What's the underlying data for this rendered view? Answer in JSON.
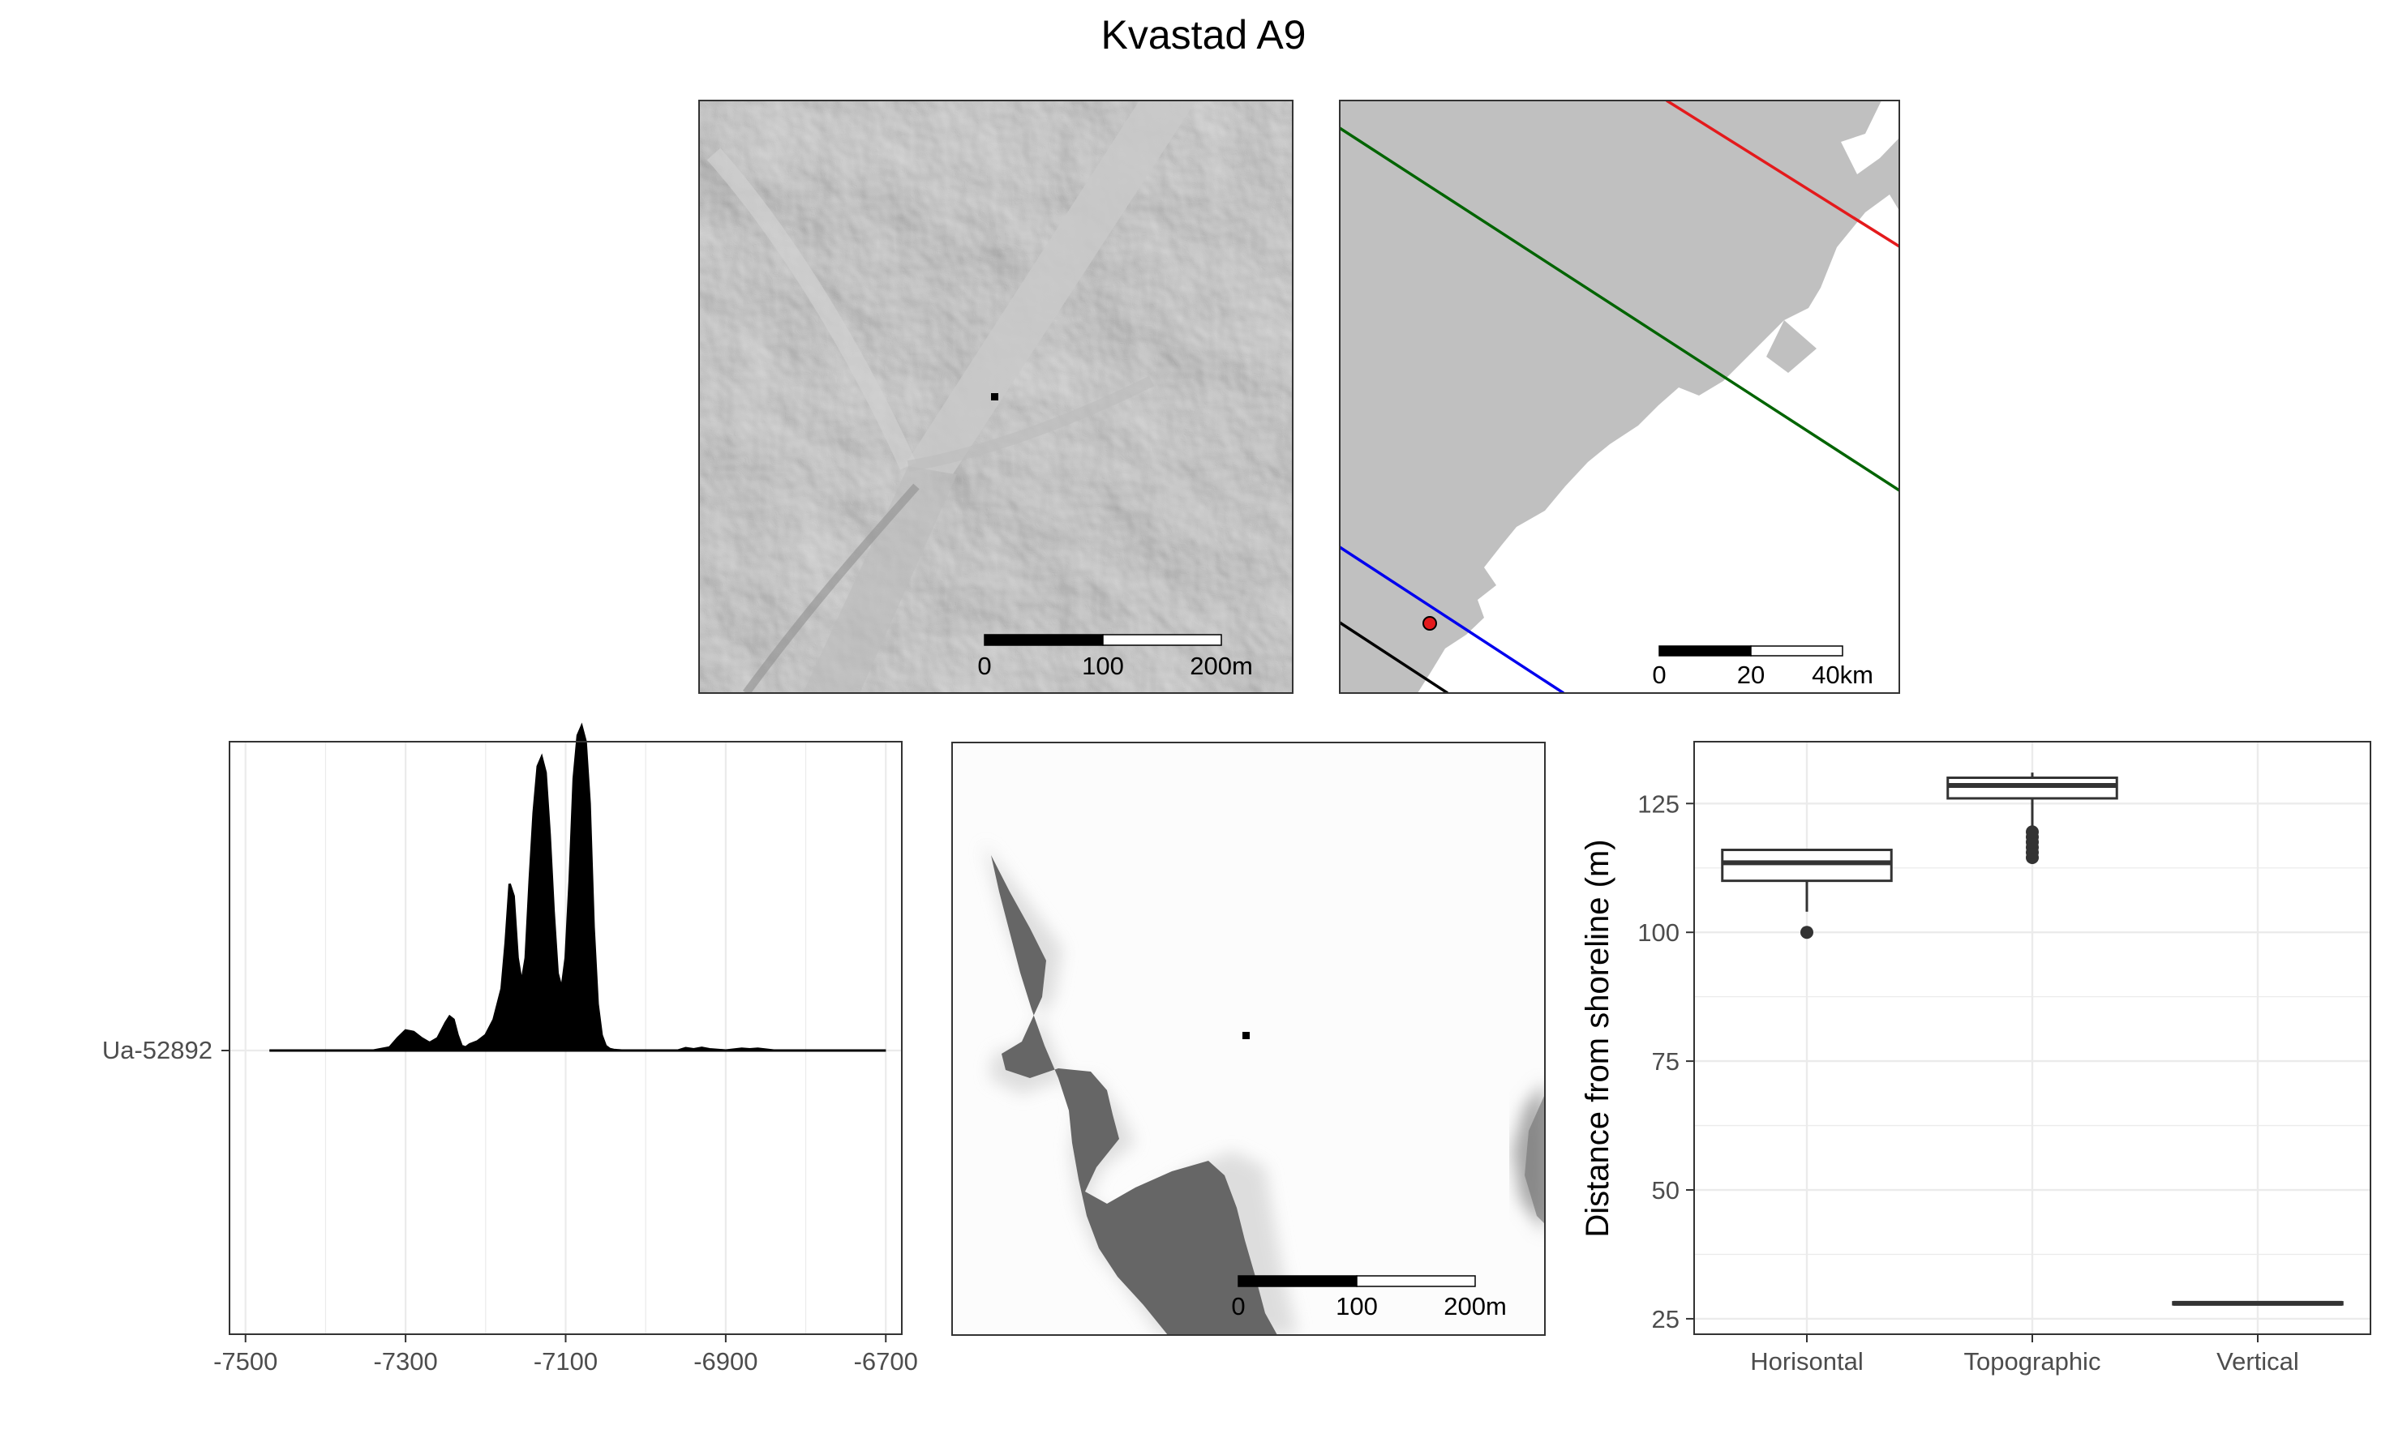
{
  "figure_title": "Kvastad A9",
  "colors": {
    "hillshade_base": "#a9a9a9",
    "land": "#c0c0c0",
    "isobase_red": "#e41a1c",
    "isobase_green": "#006400",
    "isobase_blue": "#0000ee",
    "isobase_black": "#000000",
    "site_point": "#e41a1c",
    "sea": "#666666",
    "grid": "#ebebeb",
    "box_line": "#333333"
  },
  "map_hillshade": {
    "scale_labels": [
      "0",
      "100",
      "200m"
    ]
  },
  "map_region": {
    "scale_labels": [
      "0",
      "20",
      "40km"
    ]
  },
  "map_sea": {
    "scale_labels": [
      "0",
      "100",
      "200m"
    ]
  },
  "chart_data": [
    {
      "type": "area",
      "title": "",
      "xlabel": "",
      "ylabel": "",
      "xlim": [
        -7520,
        -6680
      ],
      "x_ticks": [
        -7500,
        -7300,
        -7100,
        -6900,
        -6700
      ],
      "x_tick_labels": [
        "-7500",
        "-7300",
        "-7100",
        "-6900",
        "-6700"
      ],
      "y_tick_labels": [
        "Ua-52892"
      ],
      "grid": true,
      "series": [
        {
          "name": "Ua-52892",
          "x": [
            -7470,
            -7340,
            -7320,
            -7310,
            -7300,
            -7290,
            -7280,
            -7270,
            -7260,
            -7250,
            -7245,
            -7240,
            -7235,
            -7230,
            -7225,
            -7220,
            -7210,
            -7200,
            -7190,
            -7180,
            -7175,
            -7170,
            -7165,
            -7160,
            -7155,
            -7150,
            -7145,
            -7140,
            -7135,
            -7130,
            -7125,
            -7120,
            -7115,
            -7110,
            -7105,
            -7100,
            -7095,
            -7090,
            -7085,
            -7080,
            -7075,
            -7070,
            -7065,
            -7060,
            -7055,
            -7050,
            -7045,
            -7040,
            -7030,
            -7000,
            -6960,
            -6950,
            -6940,
            -6930,
            -6920,
            -6900,
            -6880,
            -6870,
            -6860,
            -6840,
            -6800,
            -6700
          ],
          "y": [
            0,
            0,
            0.01,
            0.04,
            0.065,
            0.06,
            0.04,
            0.025,
            0.04,
            0.09,
            0.11,
            0.1,
            0.05,
            0.015,
            0.01,
            0.02,
            0.03,
            0.05,
            0.1,
            0.2,
            0.35,
            0.54,
            0.5,
            0.3,
            0.22,
            0.3,
            0.55,
            0.77,
            0.92,
            0.95,
            0.9,
            0.7,
            0.45,
            0.25,
            0.2,
            0.3,
            0.55,
            0.88,
            1.02,
            1.05,
            1.0,
            0.8,
            0.4,
            0.15,
            0.05,
            0.015,
            0.005,
            0.002,
            0,
            0,
            0,
            0.008,
            0.004,
            0.009,
            0.004,
            0,
            0.006,
            0.004,
            0.006,
            0,
            0,
            0
          ]
        }
      ]
    },
    {
      "type": "box",
      "title": "",
      "xlabel": "",
      "ylabel": "Distance from shoreline (m)",
      "ylim": [
        22,
        137
      ],
      "y_ticks": [
        25,
        50,
        75,
        100,
        125
      ],
      "y_tick_labels": [
        "25",
        "50",
        "75",
        "100",
        "125"
      ],
      "grid": true,
      "categories": [
        "Horisontal",
        "Topographic",
        "Vertical"
      ],
      "boxes": [
        {
          "category": "Horisontal",
          "q1": 110,
          "median": 113.5,
          "q3": 116,
          "whisker_low": 104,
          "whisker_high": 116,
          "outliers": [
            100
          ]
        },
        {
          "category": "Topographic",
          "q1": 126,
          "median": 128.5,
          "q3": 130,
          "whisker_low": 120,
          "whisker_high": 131,
          "outliers": [
            114.5,
            115.5,
            116.5,
            117.5,
            118.5,
            119.5
          ]
        },
        {
          "category": "Vertical",
          "q1": 27.8,
          "median": 28,
          "q3": 28.2,
          "whisker_low": 27.6,
          "whisker_high": 28.4,
          "outliers": []
        }
      ]
    }
  ]
}
